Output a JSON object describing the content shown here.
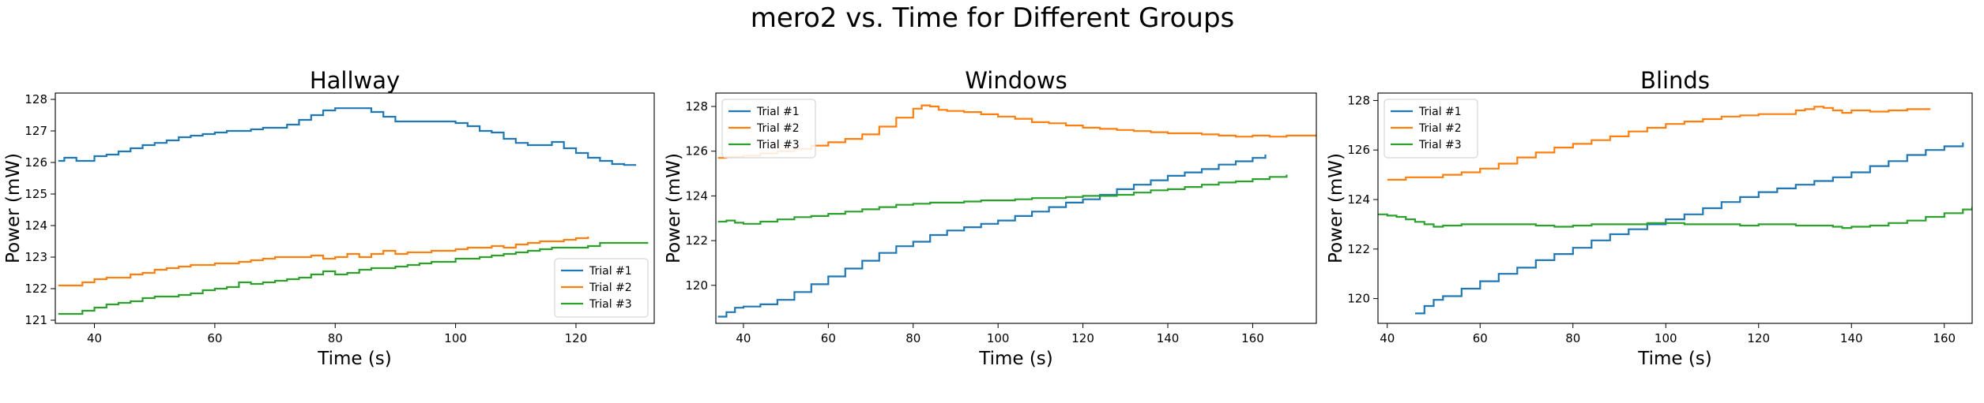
{
  "figure": {
    "suptitle": "mero2 vs. Time for Different Groups"
  },
  "colors": {
    "Trial #1": "#1f77b4",
    "Trial #2": "#ff7f0e",
    "Trial #3": "#2ca02c"
  },
  "chart_data": [
    {
      "type": "line",
      "title": "Hallway",
      "xlabel": "Time (s)",
      "ylabel": "Power (mW)",
      "xlim": [
        33.5,
        133
      ],
      "ylim": [
        120.9,
        128.2
      ],
      "xticks": [
        40,
        60,
        80,
        100,
        120
      ],
      "yticks": [
        121,
        122,
        123,
        124,
        125,
        126,
        127,
        128
      ],
      "legend": "lower-right",
      "series": [
        {
          "name": "Trial #1",
          "x": [
            34,
            35,
            36,
            37,
            38,
            40,
            42,
            44,
            46,
            48,
            50,
            52,
            54,
            56,
            58,
            60,
            62,
            64,
            66,
            68,
            70,
            72,
            74,
            76,
            78,
            80,
            82,
            84,
            86,
            88,
            90,
            92,
            94,
            96,
            98,
            100,
            102,
            104,
            106,
            108,
            110,
            112,
            114,
            116,
            118,
            120,
            122,
            124,
            126,
            128,
            130
          ],
          "y": [
            126.05,
            126.15,
            126.15,
            126.05,
            126.05,
            126.2,
            126.25,
            126.35,
            126.45,
            126.55,
            126.62,
            126.7,
            126.8,
            126.85,
            126.9,
            126.95,
            127.0,
            127.0,
            127.05,
            127.1,
            127.1,
            127.2,
            127.35,
            127.5,
            127.65,
            127.72,
            127.72,
            127.72,
            127.6,
            127.45,
            127.3,
            127.3,
            127.3,
            127.3,
            127.3,
            127.25,
            127.15,
            127.0,
            126.95,
            126.75,
            126.62,
            126.55,
            126.55,
            126.65,
            126.45,
            126.3,
            126.15,
            126.05,
            125.95,
            125.92,
            125.92
          ]
        },
        {
          "name": "Trial #2",
          "x": [
            34,
            36,
            38,
            40,
            42,
            44,
            46,
            48,
            50,
            52,
            54,
            56,
            58,
            60,
            62,
            64,
            66,
            68,
            70,
            72,
            74,
            76,
            78,
            80,
            82,
            84,
            86,
            88,
            90,
            92,
            94,
            96,
            98,
            100,
            102,
            104,
            106,
            108,
            110,
            112,
            114,
            116,
            118,
            120,
            122
          ],
          "y": [
            122.1,
            122.1,
            122.2,
            122.3,
            122.35,
            122.35,
            122.45,
            122.5,
            122.6,
            122.65,
            122.7,
            122.75,
            122.75,
            122.8,
            122.8,
            122.85,
            122.9,
            122.95,
            123.0,
            123.0,
            123.0,
            123.05,
            122.95,
            123.0,
            123.1,
            123.0,
            123.1,
            123.2,
            123.1,
            123.15,
            123.15,
            123.2,
            123.2,
            123.25,
            123.3,
            123.3,
            123.35,
            123.3,
            123.4,
            123.45,
            123.5,
            123.5,
            123.55,
            123.6,
            123.65
          ]
        },
        {
          "name": "Trial #3",
          "x": [
            34,
            36,
            38,
            40,
            42,
            44,
            46,
            48,
            50,
            52,
            54,
            56,
            58,
            60,
            62,
            64,
            66,
            68,
            70,
            72,
            74,
            76,
            78,
            80,
            82,
            84,
            86,
            88,
            90,
            92,
            94,
            96,
            98,
            100,
            102,
            104,
            106,
            108,
            110,
            112,
            114,
            116,
            118,
            120,
            122,
            124,
            126,
            128,
            130,
            132
          ],
          "y": [
            121.2,
            121.2,
            121.3,
            121.4,
            121.5,
            121.55,
            121.6,
            121.7,
            121.75,
            121.75,
            121.8,
            121.85,
            121.95,
            122.0,
            122.05,
            122.2,
            122.15,
            122.2,
            122.25,
            122.3,
            122.35,
            122.45,
            122.55,
            122.45,
            122.5,
            122.6,
            122.65,
            122.65,
            122.7,
            122.75,
            122.8,
            122.85,
            122.85,
            122.95,
            122.95,
            123.0,
            123.05,
            123.1,
            123.15,
            123.2,
            123.25,
            123.3,
            123.3,
            123.3,
            123.35,
            123.45,
            123.45,
            123.45,
            123.45,
            123.45
          ]
        }
      ]
    },
    {
      "type": "line",
      "title": "Windows",
      "xlabel": "Time (s)",
      "ylabel": "Power (mW)",
      "xlim": [
        33.5,
        175
      ],
      "ylim": [
        118.3,
        128.6
      ],
      "xticks": [
        40,
        60,
        80,
        100,
        120,
        140,
        160
      ],
      "yticks": [
        120,
        122,
        124,
        126,
        128
      ],
      "legend": "upper-left",
      "series": [
        {
          "name": "Trial #1",
          "x": [
            34,
            36,
            38,
            40,
            44,
            48,
            52,
            56,
            60,
            64,
            68,
            72,
            76,
            80,
            84,
            88,
            92,
            96,
            100,
            104,
            108,
            112,
            116,
            120,
            124,
            128,
            132,
            136,
            140,
            144,
            148,
            152,
            156,
            160,
            163
          ],
          "y": [
            118.6,
            118.8,
            119.0,
            119.05,
            119.15,
            119.35,
            119.7,
            120.05,
            120.4,
            120.75,
            121.1,
            121.45,
            121.75,
            121.95,
            122.25,
            122.45,
            122.6,
            122.75,
            122.9,
            123.1,
            123.3,
            123.5,
            123.7,
            123.85,
            124.05,
            124.3,
            124.5,
            124.7,
            124.9,
            125.05,
            125.2,
            125.4,
            125.55,
            125.7,
            125.85
          ]
        },
        {
          "name": "Trial #2",
          "x": [
            34,
            36,
            40,
            44,
            48,
            52,
            56,
            60,
            64,
            68,
            72,
            76,
            80,
            82,
            84,
            86,
            88,
            92,
            96,
            100,
            104,
            108,
            112,
            116,
            120,
            124,
            128,
            132,
            136,
            140,
            144,
            148,
            152,
            156,
            160,
            164,
            168,
            172,
            175
          ],
          "y": [
            125.7,
            125.75,
            125.8,
            125.9,
            126.0,
            126.1,
            126.25,
            126.4,
            126.55,
            126.75,
            127.1,
            127.5,
            127.9,
            128.05,
            128.0,
            127.85,
            127.8,
            127.75,
            127.65,
            127.55,
            127.45,
            127.3,
            127.25,
            127.15,
            127.05,
            127.0,
            126.95,
            126.9,
            126.85,
            126.8,
            126.8,
            126.75,
            126.7,
            126.65,
            126.7,
            126.65,
            126.7,
            126.7,
            126.75
          ]
        },
        {
          "name": "Trial #3",
          "x": [
            34,
            36,
            38,
            40,
            44,
            48,
            52,
            56,
            60,
            64,
            68,
            72,
            76,
            80,
            84,
            88,
            92,
            96,
            100,
            104,
            108,
            112,
            116,
            120,
            124,
            128,
            132,
            136,
            140,
            144,
            148,
            152,
            156,
            160,
            164,
            168
          ],
          "y": [
            122.85,
            122.9,
            122.8,
            122.75,
            122.85,
            122.95,
            123.05,
            123.1,
            123.2,
            123.3,
            123.4,
            123.5,
            123.6,
            123.65,
            123.7,
            123.7,
            123.75,
            123.8,
            123.8,
            123.85,
            123.9,
            123.9,
            123.95,
            124.0,
            124.0,
            124.05,
            124.15,
            124.25,
            124.3,
            124.4,
            124.5,
            124.6,
            124.65,
            124.75,
            124.85,
            124.95
          ]
        }
      ]
    },
    {
      "type": "line",
      "title": "Blinds",
      "xlabel": "Time (s)",
      "ylabel": "Power (mW)",
      "xlim": [
        38,
        166
      ],
      "ylim": [
        119.0,
        128.3
      ],
      "xticks": [
        40,
        60,
        80,
        100,
        120,
        140,
        160
      ],
      "yticks": [
        120,
        122,
        124,
        126,
        128
      ],
      "legend": "upper-left",
      "series": [
        {
          "name": "Trial #1",
          "x": [
            46,
            48,
            50,
            52,
            56,
            60,
            64,
            68,
            72,
            76,
            80,
            84,
            88,
            92,
            96,
            100,
            104,
            108,
            112,
            116,
            120,
            124,
            128,
            132,
            136,
            140,
            144,
            148,
            152,
            156,
            160,
            164
          ],
          "y": [
            119.4,
            119.7,
            119.95,
            120.1,
            120.4,
            120.7,
            121.0,
            121.25,
            121.55,
            121.8,
            122.05,
            122.35,
            122.6,
            122.8,
            123.0,
            123.2,
            123.4,
            123.65,
            123.9,
            124.1,
            124.3,
            124.45,
            124.6,
            124.75,
            124.9,
            125.1,
            125.35,
            125.55,
            125.8,
            126.0,
            126.15,
            126.3
          ]
        },
        {
          "name": "Trial #2",
          "x": [
            40,
            44,
            48,
            52,
            56,
            60,
            64,
            68,
            72,
            76,
            80,
            84,
            88,
            92,
            96,
            100,
            104,
            108,
            112,
            116,
            120,
            124,
            128,
            130,
            132,
            134,
            136,
            138,
            140,
            144,
            148,
            152,
            157
          ],
          "y": [
            124.8,
            124.9,
            124.9,
            125.0,
            125.1,
            125.25,
            125.45,
            125.7,
            125.9,
            126.1,
            126.25,
            126.4,
            126.55,
            126.75,
            126.9,
            127.05,
            127.15,
            127.25,
            127.35,
            127.4,
            127.45,
            127.45,
            127.6,
            127.65,
            127.75,
            127.7,
            127.6,
            127.5,
            127.6,
            127.55,
            127.6,
            127.65,
            127.65
          ]
        },
        {
          "name": "Trial #3",
          "x": [
            38,
            40,
            42,
            44,
            46,
            48,
            50,
            52,
            56,
            60,
            64,
            68,
            72,
            76,
            80,
            84,
            88,
            92,
            96,
            100,
            104,
            108,
            112,
            116,
            120,
            124,
            128,
            132,
            136,
            138,
            140,
            144,
            148,
            152,
            156,
            160,
            164,
            166
          ],
          "y": [
            123.4,
            123.35,
            123.3,
            123.2,
            123.1,
            123.0,
            122.9,
            122.95,
            123.0,
            123.0,
            123.0,
            123.0,
            122.95,
            122.9,
            122.95,
            123.0,
            123.0,
            123.0,
            123.05,
            123.05,
            123.0,
            123.0,
            123.0,
            122.95,
            123.0,
            123.0,
            122.95,
            122.95,
            122.9,
            122.85,
            122.9,
            122.95,
            123.05,
            123.15,
            123.3,
            123.45,
            123.6,
            123.7
          ]
        }
      ]
    }
  ]
}
